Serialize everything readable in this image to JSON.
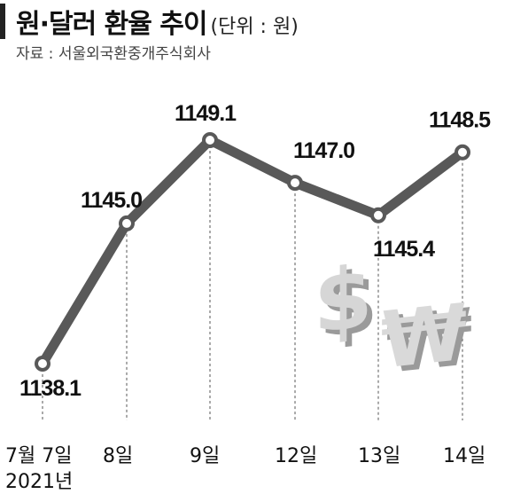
{
  "header": {
    "title": "원·달러 환율 추이",
    "unit": "(단위 : 원)",
    "source": "자료 : 서울외국환중개주식회사"
  },
  "chart_data": {
    "type": "line",
    "title": "원·달러 환율 추이",
    "ylabel": "",
    "xlabel": "",
    "year_label": "2021년",
    "categories": [
      "7월 7일",
      "8일",
      "9일",
      "12일",
      "13일",
      "14일"
    ],
    "series": [
      {
        "values": [
          1138.1,
          1145.0,
          1149.1,
          1147.0,
          1145.4,
          1148.5
        ]
      }
    ],
    "value_labels": [
      "1138.1",
      "1145.0",
      "1149.1",
      "1147.0",
      "1145.4",
      "1148.5"
    ],
    "ylim": [
      1137,
      1150
    ],
    "grid": false,
    "colors": {
      "line": "#595959",
      "marker_fill": "#ffffff",
      "marker_stroke": "#595959",
      "guide": "#555555"
    },
    "decoration": [
      "dollar-sign-icon",
      "won-sign-icon"
    ]
  }
}
